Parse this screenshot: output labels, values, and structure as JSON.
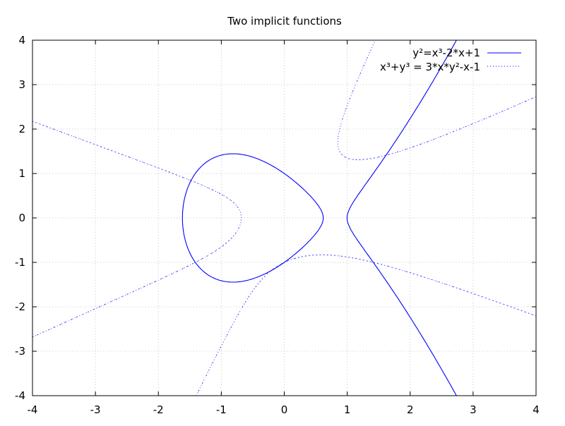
{
  "chart_data": {
    "type": "line",
    "title": "Two implicit functions",
    "xlabel": "",
    "ylabel": "",
    "xlim": [
      -4,
      4
    ],
    "ylim": [
      -4,
      4
    ],
    "xticks": [
      "-4",
      "-3",
      "-2",
      "-1",
      "0",
      "1",
      "2",
      "3",
      "4"
    ],
    "yticks": [
      "-4",
      "-3",
      "-2",
      "-1",
      "0",
      "1",
      "2",
      "3",
      "4"
    ],
    "grid": true,
    "legend_position": "top-right",
    "series": [
      {
        "name": "y²=x³-2*x+1",
        "expression": "y*y - (x*x*x - 2*x + 1)",
        "color": "#0000ff",
        "style": "solid"
      },
      {
        "name": "x³+y³ = 3*x*y²-x-1",
        "expression": "x*x*x + y*y*y - (3*x*y*y - x - 1)",
        "color": "#0000ff",
        "style": "dotted"
      }
    ]
  }
}
